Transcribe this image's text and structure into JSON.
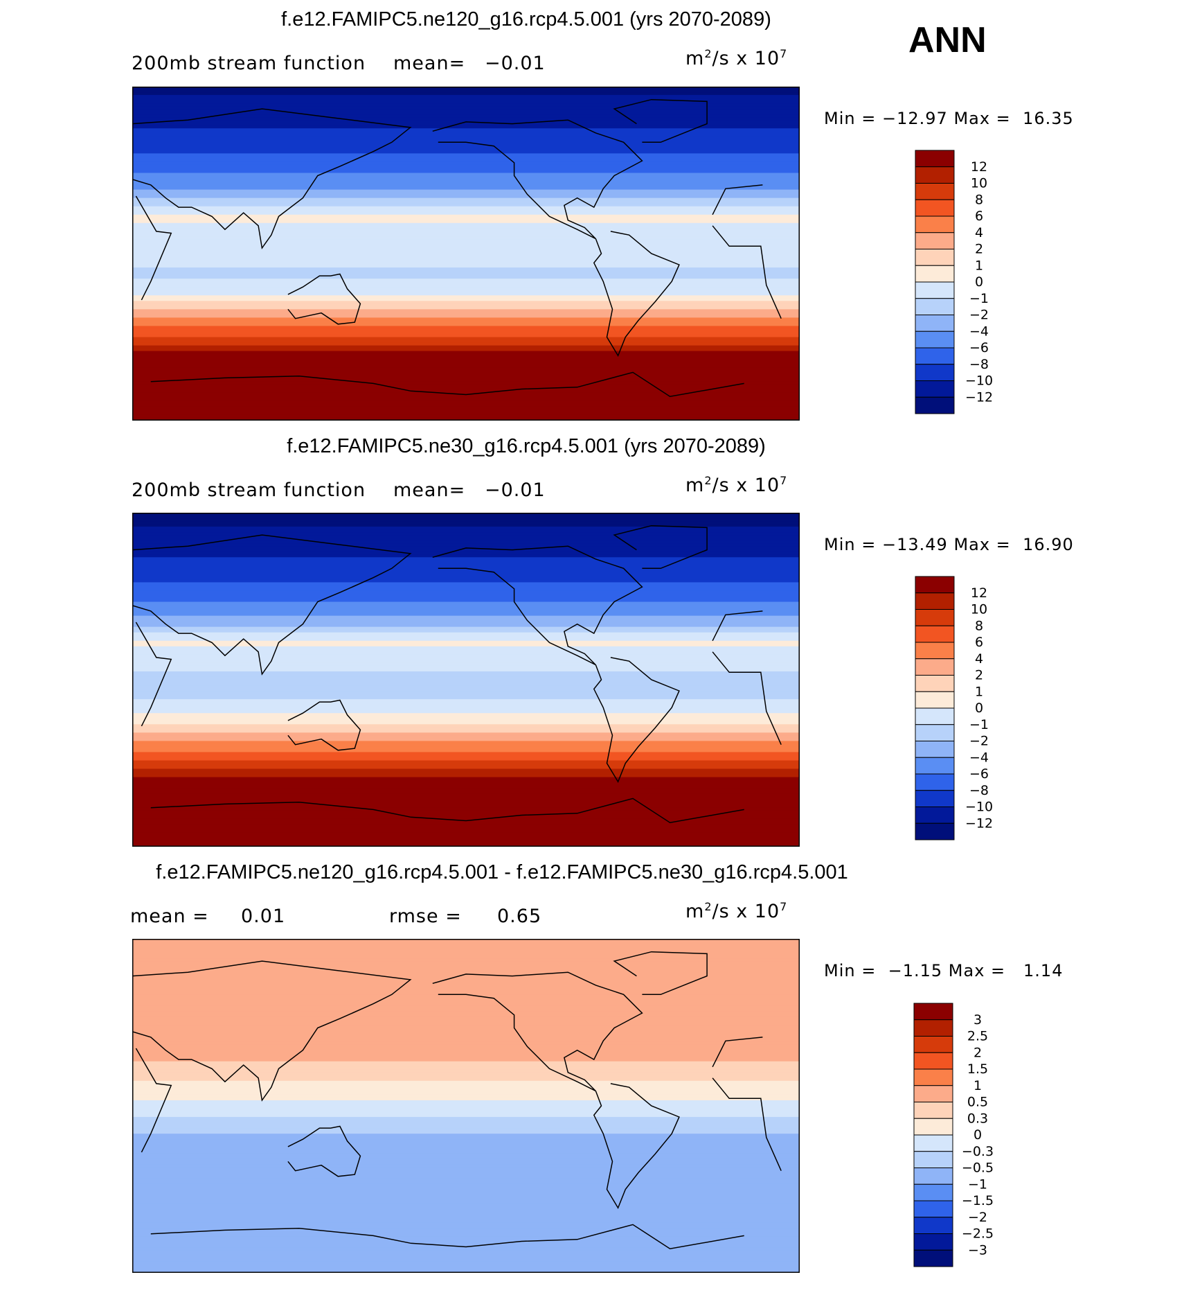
{
  "season": "ANN",
  "panels": [
    {
      "title": "f.e12.FAMIPC5.ne120_g16.rcp4.5.001 (yrs 2070-2089)",
      "subtitle_left": "200mb stream function",
      "stat1_label": "mean=",
      "stat1_value": "−0.01",
      "units_base": "m",
      "units_exp1": "2",
      "units_mid": "/s x 10",
      "units_exp2": "7",
      "min_label": "Min =",
      "min_value": "−12.97",
      "max_label": "Max =",
      "max_value": "16.35"
    },
    {
      "title": "f.e12.FAMIPC5.ne30_g16.rcp4.5.001 (yrs 2070-2089)",
      "subtitle_left": "200mb stream function",
      "stat1_label": "mean=",
      "stat1_value": "−0.01",
      "units_base": "m",
      "units_exp1": "2",
      "units_mid": "/s x 10",
      "units_exp2": "7",
      "min_label": "Min =",
      "min_value": "−13.49",
      "max_label": "Max =",
      "max_value": "16.90"
    },
    {
      "title": "f.e12.FAMIPC5.ne120_g16.rcp4.5.001 - f.e12.FAMIPC5.ne30_g16.rcp4.5.001",
      "stat1_label": "mean =",
      "stat1_value": "0.01",
      "stat2_label": "rmse =",
      "stat2_value": "0.65",
      "units_base": "m",
      "units_exp1": "2",
      "units_mid": "/s x 10",
      "units_exp2": "7",
      "min_label": "Min =",
      "min_value": "−1.15",
      "max_label": "Max =",
      "max_value": "1.14"
    }
  ],
  "chart_data": [
    {
      "type": "heatmap",
      "title": "f.e12.FAMIPC5.ne120_g16.rcp4.5.001 (yrs 2070-2089)",
      "variable": "200mb stream function",
      "units": "m^2/s x 10^7",
      "mean": -0.01,
      "min": -12.97,
      "max": 16.35,
      "colorbar_ticks": [
        "12",
        "10",
        "8",
        "6",
        "4",
        "2",
        "1",
        "0",
        "−1",
        "−2",
        "−4",
        "−6",
        "−8",
        "−10",
        "−12"
      ],
      "colorbar_colors": [
        "#8b0000",
        "#b22000",
        "#d63b0b",
        "#f25522",
        "#fa8049",
        "#fcab8a",
        "#fed3b9",
        "#fdebd9",
        "#d5e6fb",
        "#b7d2fa",
        "#8fb4f7",
        "#5a8ef3",
        "#2f63ea",
        "#1038c9",
        "#02199a",
        "#000f7a"
      ],
      "profile_by_lat": [
        [
          90,
          -12.5
        ],
        [
          75,
          -11.0
        ],
        [
          60,
          -9.0
        ],
        [
          45,
          -6.5
        ],
        [
          35,
          -4.0
        ],
        [
          28,
          -1.5
        ],
        [
          20,
          0.3
        ],
        [
          10,
          -0.5
        ],
        [
          0,
          -0.5
        ],
        [
          -10,
          -1.2
        ],
        [
          -20,
          -0.5
        ],
        [
          -28,
          1.5
        ],
        [
          -35,
          4.0
        ],
        [
          -42,
          7.0
        ],
        [
          -50,
          10.5
        ],
        [
          -55,
          13.0
        ],
        [
          -60,
          14.0
        ],
        [
          -90,
          15.0
        ]
      ]
    },
    {
      "type": "heatmap",
      "title": "f.e12.FAMIPC5.ne30_g16.rcp4.5.001 (yrs 2070-2089)",
      "variable": "200mb stream function",
      "units": "m^2/s x 10^7",
      "mean": -0.01,
      "min": -13.49,
      "max": 16.9,
      "colorbar_ticks": [
        "12",
        "10",
        "8",
        "6",
        "4",
        "2",
        "1",
        "0",
        "−1",
        "−2",
        "−4",
        "−6",
        "−8",
        "−10",
        "−12"
      ],
      "colorbar_colors": [
        "#8b0000",
        "#b22000",
        "#d63b0b",
        "#f25522",
        "#fa8049",
        "#fcab8a",
        "#fed3b9",
        "#fdebd9",
        "#d5e6fb",
        "#b7d2fa",
        "#8fb4f7",
        "#5a8ef3",
        "#2f63ea",
        "#1038c9",
        "#02199a",
        "#000f7a"
      ],
      "profile_by_lat": [
        [
          90,
          -12.8
        ],
        [
          75,
          -11.2
        ],
        [
          60,
          -9.2
        ],
        [
          45,
          -6.8
        ],
        [
          35,
          -4.2
        ],
        [
          28,
          -1.8
        ],
        [
          20,
          0.2
        ],
        [
          10,
          -0.6
        ],
        [
          0,
          -1.3
        ],
        [
          -10,
          -1.0
        ],
        [
          -20,
          0.2
        ],
        [
          -28,
          2.0
        ],
        [
          -35,
          4.5
        ],
        [
          -42,
          7.5
        ],
        [
          -50,
          11.0
        ],
        [
          -55,
          13.5
        ],
        [
          -60,
          14.5
        ],
        [
          -90,
          15.5
        ]
      ]
    },
    {
      "type": "heatmap",
      "title": "f.e12.FAMIPC5.ne120_g16.rcp4.5.001 - f.e12.FAMIPC5.ne30_g16.rcp4.5.001",
      "units": "m^2/s x 10^7",
      "mean": 0.01,
      "rmse": 0.65,
      "min": -1.15,
      "max": 1.14,
      "colorbar_ticks": [
        "3",
        "2.5",
        "2",
        "1.5",
        "1",
        "0.5",
        "0.3",
        "0",
        "−0.3",
        "−0.5",
        "−1",
        "−1.5",
        "−2",
        "−2.5",
        "−3"
      ],
      "colorbar_colors": [
        "#8b0000",
        "#b22000",
        "#d63b0b",
        "#f25522",
        "#fa8049",
        "#fcab8a",
        "#fed3b9",
        "#fdebd9",
        "#d5e6fb",
        "#b7d2fa",
        "#8fb4f7",
        "#5a8ef3",
        "#2f63ea",
        "#1038c9",
        "#02199a",
        "#000f7a"
      ],
      "profile_by_lat": [
        [
          90,
          0.8
        ],
        [
          60,
          0.7
        ],
        [
          45,
          0.65
        ],
        [
          30,
          0.6
        ],
        [
          15,
          0.35
        ],
        [
          5,
          0.1
        ],
        [
          0,
          -0.1
        ],
        [
          -10,
          -0.4
        ],
        [
          -20,
          -0.6
        ],
        [
          -35,
          -0.8
        ],
        [
          -50,
          -0.9
        ],
        [
          -60,
          -0.85
        ],
        [
          -75,
          -0.6
        ],
        [
          -90,
          -0.6
        ]
      ]
    }
  ]
}
